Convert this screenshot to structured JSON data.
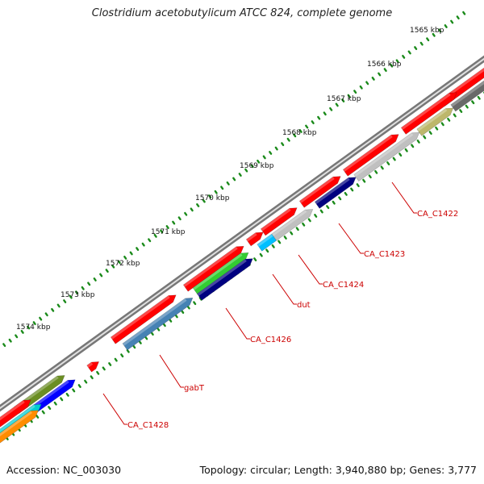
{
  "title": "Clostridium acetobutylicum ATCC 824, complete genome",
  "footer": {
    "accession": "Accession: NC_003030",
    "summary": "Topology: circular; Length: 3,940,880 bp; Genes: 3,777"
  },
  "ruler": {
    "labels": [
      "1565 kbp",
      "1566 kbp",
      "1567 kbp",
      "1568 kbp",
      "1569 kbp",
      "1570 kbp",
      "1571 kbp",
      "1572 kbp",
      "1573 kbp",
      "1574 kbp"
    ]
  },
  "gene_labels": [
    "CA_C1422",
    "CA_C1423",
    "CA_C1424",
    "dut",
    "CA_C1426",
    "gabT",
    "CA_C1428"
  ],
  "colors": {
    "gene": "#ff0000",
    "backbone": "#888888",
    "tick": "#1a8a1a",
    "label": "#cc0000",
    "olive": "#6b8e23",
    "blue": "#0000ff",
    "steelblue": "#4682b4",
    "green": "#32cd32",
    "navy": "#000080",
    "sky": "#00bfff",
    "silver": "#c0c0c0",
    "khaki": "#bdb76b",
    "dimgray": "#696969",
    "orange": "#ff8c00",
    "cyan": "#00ced1"
  }
}
